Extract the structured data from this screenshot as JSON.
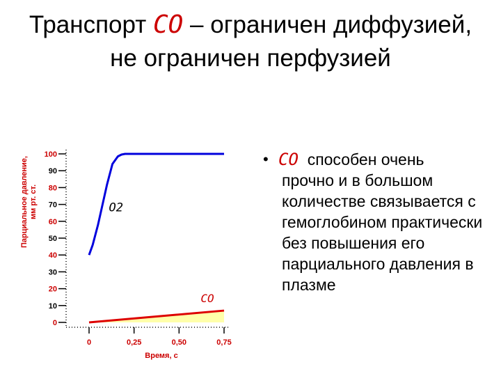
{
  "slide": {
    "title_part1": "Транспорт ",
    "title_co": "CO",
    "title_part2": " – ограничен диффузией, не ограничен перфузией",
    "bullet_co": "CO",
    "bullet_text_first": "способен очень",
    "bullet_text_rest": "прочно и в большом количестве связывается с гемоглобином практически без повышения его парциального давления в плазме"
  },
  "colors": {
    "o2_line": "#0000dd",
    "co_line": "#dd0000",
    "co_fill": "#ffffaa",
    "axis_label": "#cc0000",
    "tick_label": "#000000"
  },
  "chart_data": {
    "type": "line",
    "ylabel_line1": "Парциальное давление,",
    "ylabel_line2": "мм рт. ст.",
    "xlabel": "Время, с",
    "ylim": [
      0,
      100
    ],
    "xlim": [
      0,
      0.75
    ],
    "yticks": [
      "100",
      "90",
      "80",
      "70",
      "60",
      "50",
      "40",
      "30",
      "20",
      "10",
      "0"
    ],
    "xticks": [
      "0",
      "0,25",
      "0,50",
      "0,75"
    ],
    "series": [
      {
        "name": "O2",
        "x": [
          0,
          0.02,
          0.05,
          0.1,
          0.13,
          0.16,
          0.18,
          0.2,
          0.25,
          0.5,
          0.75
        ],
        "y": [
          40,
          46,
          58,
          82,
          94,
          98.5,
          99.6,
          100,
          100,
          100,
          100
        ]
      },
      {
        "name": "CO",
        "x": [
          0,
          0.75
        ],
        "y": [
          0,
          7
        ]
      }
    ]
  }
}
